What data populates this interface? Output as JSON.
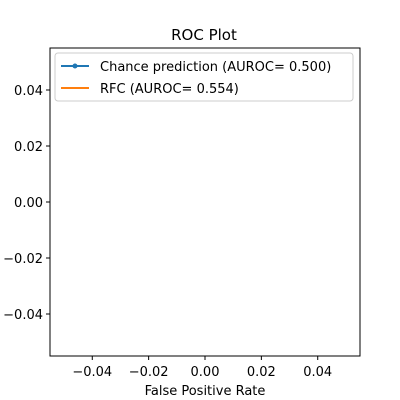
{
  "chart_data": {
    "type": "line",
    "title": "ROC Plot",
    "xlabel": "False Positive Rate",
    "ylabel": "",
    "xlim": [
      -0.055,
      0.055
    ],
    "ylim": [
      -0.055,
      0.055
    ],
    "x_ticks": [
      -0.04,
      -0.02,
      0.0,
      0.02,
      0.04
    ],
    "x_tick_labels": [
      "−0.04",
      "−0.02",
      "0.00",
      "0.02",
      "0.04"
    ],
    "y_ticks": [
      -0.04,
      -0.02,
      0.0,
      0.02,
      0.04
    ],
    "y_tick_labels": [
      "−0.04",
      "−0.02",
      "0.00",
      "0.02",
      "0.04"
    ],
    "grid": false,
    "legend_position": "top-left",
    "series": [
      {
        "name": "Chance prediction (AUROC= 0.500)",
        "x": [],
        "y": [],
        "color": "#1f77b4",
        "marker": "dot"
      },
      {
        "name": "RFC (AUROC= 0.554)",
        "x": [],
        "y": [],
        "color": "#ff7f0e",
        "marker": "none"
      }
    ]
  }
}
